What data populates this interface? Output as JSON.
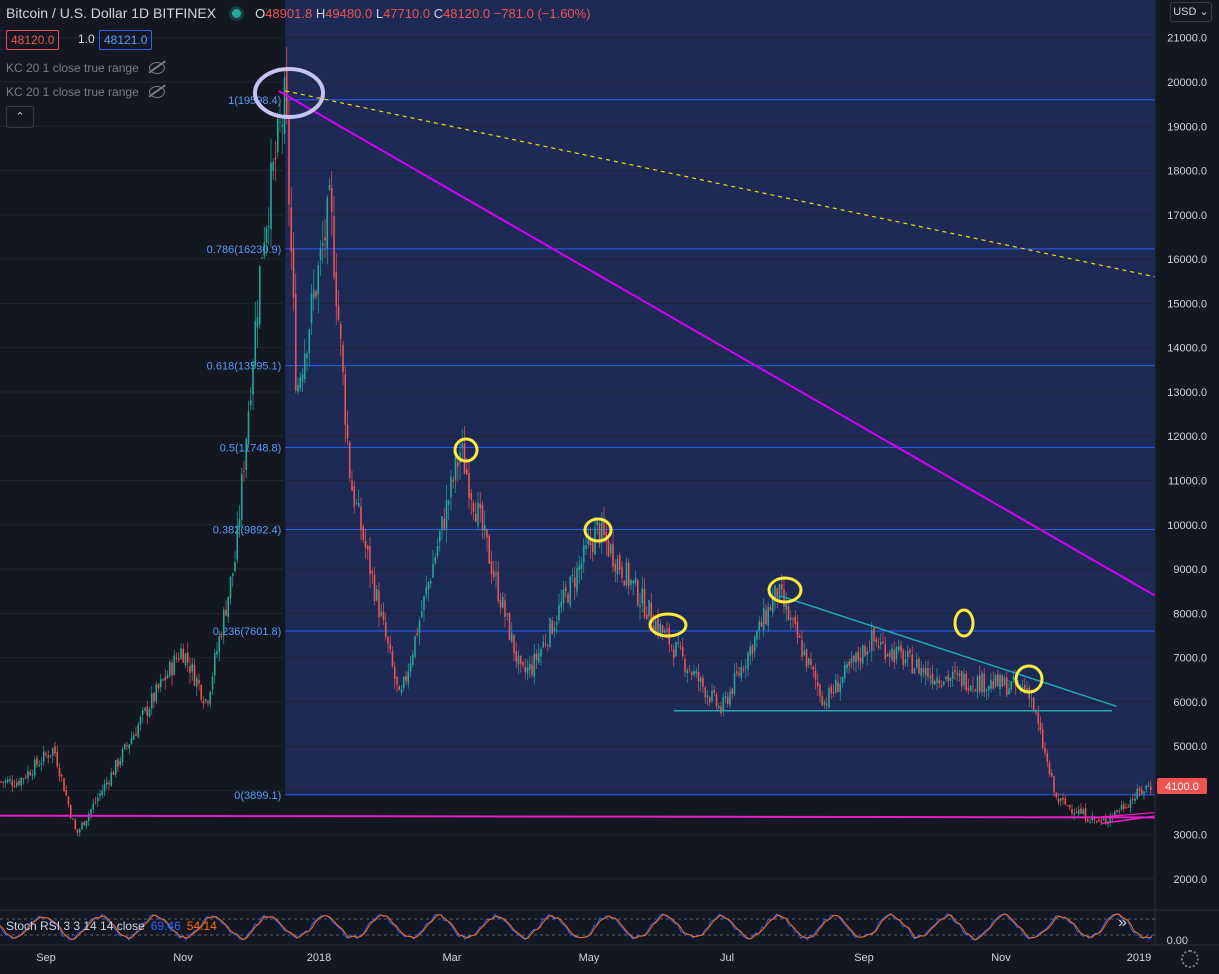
{
  "header": {
    "title": "Bitcoin / U.S. Dollar  1D  BITFINEX",
    "open_label": "O",
    "open": "48901.8",
    "high_label": "H",
    "high": "49480.0",
    "low_label": "L",
    "low": "47710.0",
    "close_label": "C",
    "close": "48120.0",
    "change": "−781.0 (−1.60%)"
  },
  "trade": {
    "sell": "48120.0",
    "spread": "1.0",
    "buy": "48121.0"
  },
  "indicators": [
    {
      "label": "KC 20 1 close true range"
    },
    {
      "label": "KC 20 1 close true range"
    }
  ],
  "currency": "USD",
  "collapse_icon": "chevron-up-icon",
  "price_axis": {
    "ticks": [
      "21000.0",
      "20000.0",
      "19000.0",
      "18000.0",
      "17000.0",
      "16000.0",
      "15000.0",
      "14000.0",
      "13000.0",
      "12000.0",
      "11000.0",
      "10000.0",
      "9000.0",
      "8000.0",
      "7000.0",
      "6000.0",
      "5000.0",
      "3000.0",
      "2000.0"
    ],
    "current_price": "4100.0",
    "rsi_tick": "0.00"
  },
  "time_axis": {
    "labels": [
      "Sep",
      "Nov",
      "2018",
      "Mar",
      "May",
      "Jul",
      "Sep",
      "Nov",
      "2019"
    ]
  },
  "stoch": {
    "label": "Stoch RSI 3 3 14 14 close",
    "k": "69.46",
    "d": "54.14"
  },
  "fib_levels": [
    {
      "label": "1(19598.4)",
      "ratio": 1,
      "price": 19598.4
    },
    {
      "label": "0.786(16230.9)",
      "ratio": 0.786,
      "price": 16230.9
    },
    {
      "label": "0.618(13595.1)",
      "ratio": 0.618,
      "price": 13595.1
    },
    {
      "label": "0.5(11748.8)",
      "ratio": 0.5,
      "price": 11748.8
    },
    {
      "label": "0.382(9892.4)",
      "ratio": 0.382,
      "price": 9892.4
    },
    {
      "label": "0.236(7601.8)",
      "ratio": 0.236,
      "price": 7601.8
    },
    {
      "label": "0(3899.1)",
      "ratio": 0,
      "price": 3899.1
    }
  ],
  "colors": {
    "background": "#131722",
    "fib_zone": "#1c2a55",
    "fib_line": "#2962ff",
    "fib_text": "#5b9cf6",
    "up": "#26a69a",
    "down": "#ef5350",
    "trend_magenta": "#d500f9",
    "support_magenta": "#e91ec8",
    "teal_line": "#26a6b5",
    "dashed_yellow": "#f5d90a",
    "circle_yellow": "#ffeb3b",
    "circle_lavender": "#c7c3f0",
    "stoch_k": "#2962ff",
    "stoch_d": "#ff6d00"
  },
  "chart_data": {
    "type": "candlestick",
    "title": "Bitcoin / U.S. Dollar 1D BITFINEX",
    "x": [
      "2017-08-20",
      "2017-09-05",
      "2017-09-15",
      "2017-10-01",
      "2017-10-15",
      "2017-11-01",
      "2017-11-12",
      "2017-11-25",
      "2017-12-07",
      "2017-12-17",
      "2017-12-22",
      "2018-01-06",
      "2018-01-15",
      "2018-02-06",
      "2018-03-05",
      "2018-04-01",
      "2018-04-06",
      "2018-05-05",
      "2018-06-01",
      "2018-06-29",
      "2018-07-24",
      "2018-08-14",
      "2018-09-04",
      "2018-10-01",
      "2018-11-13",
      "2018-11-25",
      "2018-12-15",
      "2019-01-05"
    ],
    "y": [
      4200,
      4950,
      3000,
      4400,
      5700,
      7200,
      6000,
      9300,
      16500,
      19598,
      13000,
      17200,
      11000,
      6000,
      11700,
      6600,
      6800,
      9900,
      7700,
      5800,
      8500,
      6000,
      7400,
      6600,
      6300,
      3800,
      3250,
      4100
    ],
    "ylim": [
      1500,
      21500
    ]
  }
}
